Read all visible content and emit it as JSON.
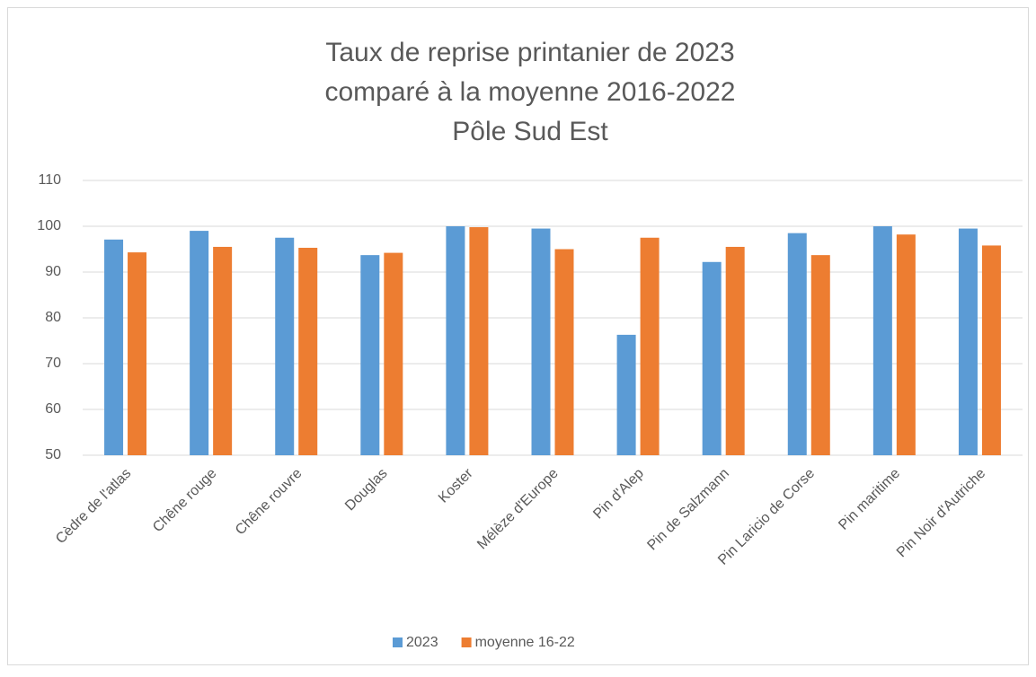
{
  "chart_data": {
    "type": "bar",
    "title": [
      "Taux de reprise printanier de 2023",
      "comparé à la moyenne 2016-2022",
      "Pôle Sud Est"
    ],
    "categories": [
      "Cèdre de l'atlas",
      "Chêne rouge",
      "Chêne rouvre",
      "Douglas",
      "Koster",
      "Mélèze d'Europe",
      "Pin d'Alep",
      "Pin de Salzmann",
      "Pin Laricio de Corse",
      "Pin maritime",
      "Pin Noir d'Autriche"
    ],
    "series": [
      {
        "name": "2023",
        "color": "#5b9bd5",
        "values": [
          97.1,
          99.0,
          97.5,
          93.7,
          100,
          99.5,
          76.3,
          92.2,
          98.5,
          100,
          99.5
        ]
      },
      {
        "name": "moyenne 16-22",
        "color": "#ed7d31",
        "values": [
          94.3,
          95.5,
          95.3,
          94.2,
          99.8,
          95.0,
          97.5,
          95.5,
          93.7,
          98.2,
          95.8
        ]
      }
    ],
    "ylim": [
      50,
      110
    ],
    "yticks": [
      50,
      60,
      70,
      80,
      90,
      100,
      110
    ],
    "grid": true,
    "legend": "bottom"
  }
}
